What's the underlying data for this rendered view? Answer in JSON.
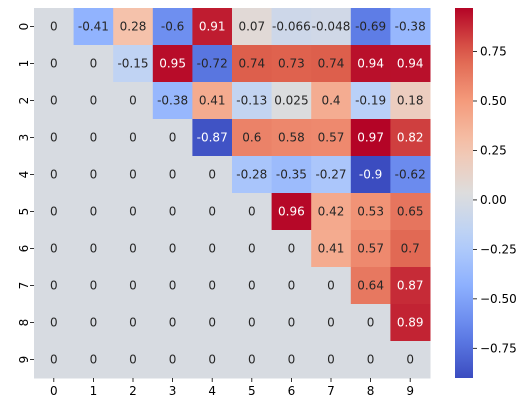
{
  "chart_data": {
    "type": "heatmap",
    "title": "",
    "xlabel": "",
    "ylabel": "",
    "x_categories": [
      "0",
      "1",
      "2",
      "3",
      "4",
      "5",
      "6",
      "7",
      "8",
      "9"
    ],
    "y_categories": [
      "0",
      "1",
      "2",
      "3",
      "4",
      "5",
      "6",
      "7",
      "8",
      "9"
    ],
    "values": [
      [
        0,
        -0.41,
        0.28,
        -0.6,
        0.91,
        0.07,
        -0.066,
        -0.048,
        -0.69,
        -0.38
      ],
      [
        0,
        0,
        -0.15,
        0.95,
        -0.72,
        0.74,
        0.73,
        0.74,
        0.94,
        0.94
      ],
      [
        0,
        0,
        0,
        -0.38,
        0.41,
        -0.13,
        0.025,
        0.4,
        -0.19,
        0.18
      ],
      [
        0,
        0,
        0,
        0,
        -0.87,
        0.6,
        0.58,
        0.57,
        0.97,
        0.82
      ],
      [
        0,
        0,
        0,
        0,
        0,
        -0.28,
        -0.35,
        -0.27,
        -0.9,
        -0.62
      ],
      [
        0,
        0,
        0,
        0,
        0,
        0,
        0.96,
        0.42,
        0.53,
        0.65
      ],
      [
        0,
        0,
        0,
        0,
        0,
        0,
        0,
        0.41,
        0.57,
        0.7
      ],
      [
        0,
        0,
        0,
        0,
        0,
        0,
        0,
        0,
        0.64,
        0.87
      ],
      [
        0,
        0,
        0,
        0,
        0,
        0,
        0,
        0,
        0,
        0.89
      ],
      [
        0,
        0,
        0,
        0,
        0,
        0,
        0,
        0,
        0,
        0
      ]
    ],
    "labels": [
      [
        "0",
        "-0.41",
        "0.28",
        "-0.6",
        "0.91",
        "0.07",
        "-0.066",
        "-0.048",
        "-0.69",
        "-0.38"
      ],
      [
        "0",
        "0",
        "-0.15",
        "0.95",
        "-0.72",
        "0.74",
        "0.73",
        "0.74",
        "0.94",
        "0.94"
      ],
      [
        "0",
        "0",
        "0",
        "-0.38",
        "0.41",
        "-0.13",
        "0.025",
        "0.4",
        "-0.19",
        "0.18"
      ],
      [
        "0",
        "0",
        "0",
        "0",
        "-0.87",
        "0.6",
        "0.58",
        "0.57",
        "0.97",
        "0.82"
      ],
      [
        "0",
        "0",
        "0",
        "0",
        "0",
        "-0.28",
        "-0.35",
        "-0.27",
        "-0.9",
        "-0.62"
      ],
      [
        "0",
        "0",
        "0",
        "0",
        "0",
        "0",
        "0.96",
        "0.42",
        "0.53",
        "0.65"
      ],
      [
        "0",
        "0",
        "0",
        "0",
        "0",
        "0",
        "0",
        "0.41",
        "0.57",
        "0.7"
      ],
      [
        "0",
        "0",
        "0",
        "0",
        "0",
        "0",
        "0",
        "0",
        "0.64",
        "0.87"
      ],
      [
        "0",
        "0",
        "0",
        "0",
        "0",
        "0",
        "0",
        "0",
        "0",
        "0.89"
      ],
      [
        "0",
        "0",
        "0",
        "0",
        "0",
        "0",
        "0",
        "0",
        "0",
        "0"
      ]
    ],
    "colormap": "coolwarm",
    "color_range": [
      -0.9,
      0.97
    ],
    "colorbar": {
      "ticks": [
        0.75,
        0.5,
        0.25,
        0.0,
        -0.25,
        -0.5,
        -0.75
      ],
      "tick_labels": [
        "0.75",
        "0.50",
        "0.25",
        "0.00",
        "−0.25",
        "−0.50",
        "−0.75"
      ]
    },
    "grid": false,
    "legend": "colorbar-right"
  }
}
